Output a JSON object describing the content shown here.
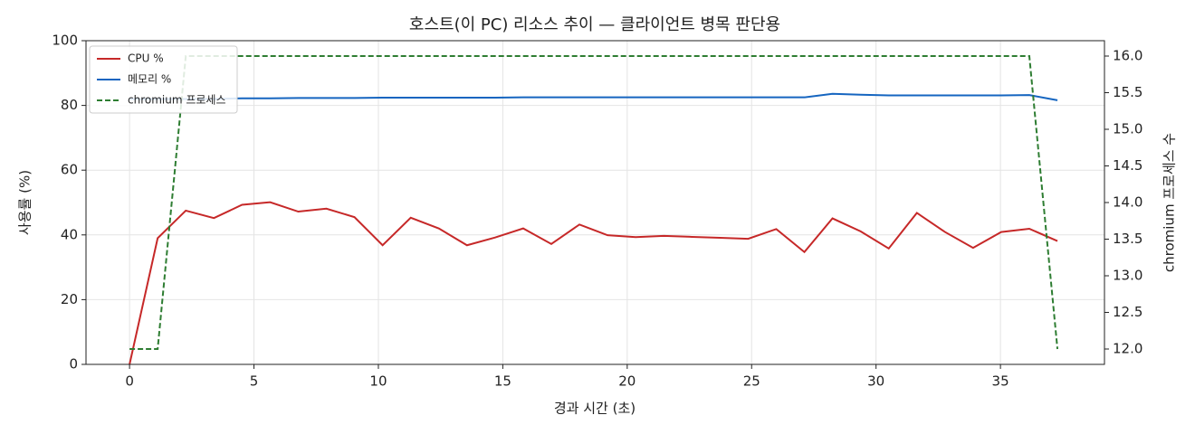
{
  "chart_data": {
    "type": "line",
    "title": "호스트(이 PC) 리소스 추이 — 클라이언트 병목 판단용",
    "x_label": "경과 시간 (초)",
    "y_label": "사용률 (%)",
    "y2_label": "chromium 프로세스 수",
    "x": [
      0,
      1.13,
      2.26,
      3.39,
      4.52,
      5.65,
      6.78,
      7.91,
      9.04,
      10.17,
      11.3,
      12.43,
      13.56,
      14.69,
      15.82,
      16.95,
      18.08,
      19.21,
      20.34,
      21.47,
      22.6,
      23.73,
      24.86,
      25.99,
      27.12,
      28.25,
      29.38,
      30.51,
      31.64,
      32.77,
      33.9,
      35.03,
      36.16,
      37.29
    ],
    "series": [
      {
        "name": "CPU %",
        "color": "#c62828",
        "style": "solid",
        "values": [
          0,
          39,
          47.5,
          45.2,
          49.3,
          50.1,
          47.2,
          48.1,
          45.5,
          36.8,
          45.3,
          42.0,
          36.8,
          39.2,
          42.0,
          37.2,
          43.2,
          39.9,
          39.3,
          39.7,
          39.4,
          39.1,
          38.8,
          41.8,
          34.7,
          45.1,
          41.1,
          35.8,
          46.8,
          40.9,
          36.0,
          40.9,
          41.9,
          38.1
        ]
      },
      {
        "name": "메모리 %",
        "color": "#1565c0",
        "style": "solid",
        "values": [
          82,
          82,
          82,
          82,
          82.2,
          82.2,
          82.3,
          82.3,
          82.3,
          82.4,
          82.4,
          82.4,
          82.4,
          82.4,
          82.5,
          82.5,
          82.5,
          82.5,
          82.5,
          82.5,
          82.5,
          82.5,
          82.5,
          82.5,
          82.5,
          83.6,
          83.3,
          83.1,
          83.1,
          83.1,
          83.1,
          83.1,
          83.2,
          81.6
        ]
      },
      {
        "name": "chromium 프로세스",
        "color": "#2e7d32",
        "style": "dashed",
        "axis": "y2",
        "values": [
          12,
          12,
          16,
          16,
          16,
          16,
          16,
          16,
          16,
          16,
          16,
          16,
          16,
          16,
          16,
          16,
          16,
          16,
          16,
          16,
          16,
          16,
          16,
          16,
          16,
          16,
          16,
          16,
          16,
          16,
          16,
          16,
          16,
          12
        ]
      }
    ],
    "xlim": [
      -1.75,
      39.18
    ],
    "xticks": [
      0,
      5,
      10,
      15,
      20,
      25,
      30,
      35
    ],
    "ylim": [
      0,
      100
    ],
    "yticks": [
      0,
      20,
      40,
      60,
      80,
      100
    ],
    "y2lim": [
      11.79,
      16.21
    ],
    "y2ticks": [
      {
        "value": 12,
        "label": "12.0"
      },
      {
        "value": 12.5,
        "label": "12.5"
      },
      {
        "value": 13,
        "label": "13.0"
      },
      {
        "value": 13.5,
        "label": "13.5"
      },
      {
        "value": 14,
        "label": "14.0"
      },
      {
        "value": 14.5,
        "label": "14.5"
      },
      {
        "value": 15,
        "label": "15.0"
      },
      {
        "value": 15.5,
        "label": "15.5"
      },
      {
        "value": 16,
        "label": "16.0"
      }
    ],
    "grid": true,
    "legend": "upper-left"
  }
}
